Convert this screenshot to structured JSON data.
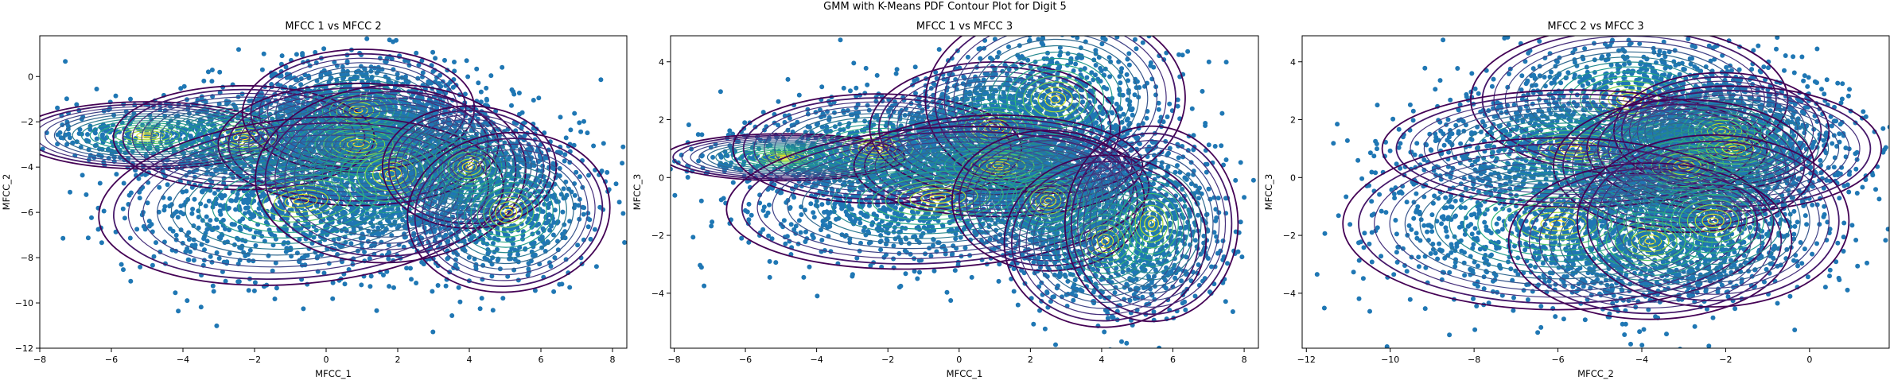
{
  "figure": {
    "suptitle": "GMM with K-Means PDF Contour Plot for Digit 5",
    "point_color": "#1f77b4",
    "contour_colormap": "viridis"
  },
  "chart_data": [
    {
      "type": "scatter",
      "title": "MFCC 1 vs MFCC 2",
      "xlabel": "MFCC_1",
      "ylabel": "MFCC_2",
      "xlim": [
        -8,
        8.4
      ],
      "ylim": [
        -12,
        1.8
      ],
      "xticks": [
        -8,
        -6,
        -4,
        -2,
        0,
        2,
        4,
        6,
        8
      ],
      "yticks": [
        0,
        -2,
        -4,
        -6,
        -8,
        -10,
        -12
      ],
      "components": [
        {
          "mean": [
            -5.0,
            -2.6
          ],
          "sd": [
            1.35,
            0.55
          ],
          "rho": 0.0,
          "n": 220
        },
        {
          "mean": [
            -2.3,
            -2.7
          ],
          "sd": [
            1.35,
            0.85
          ],
          "rho": 0.0,
          "n": 420
        },
        {
          "mean": [
            0.9,
            -1.5
          ],
          "sd": [
            1.2,
            1.0
          ],
          "rho": 0.05,
          "n": 900
        },
        {
          "mean": [
            0.9,
            -3.0
          ],
          "sd": [
            1.45,
            1.0
          ],
          "rho": 0.0,
          "n": 1000
        },
        {
          "mean": [
            -0.7,
            -5.5
          ],
          "sd": [
            2.1,
            1.35
          ],
          "rho": 0.15,
          "n": 1100
        },
        {
          "mean": [
            1.8,
            -4.3
          ],
          "sd": [
            1.4,
            1.45
          ],
          "rho": 0.1,
          "n": 600
        },
        {
          "mean": [
            4.0,
            -4.0
          ],
          "sd": [
            0.9,
            1.0
          ],
          "rho": 0.0,
          "n": 500
        },
        {
          "mean": [
            5.1,
            -6.0
          ],
          "sd": [
            1.05,
            1.3
          ],
          "rho": 0.2,
          "n": 550
        }
      ]
    },
    {
      "type": "scatter",
      "title": "MFCC 1 vs MFCC 3",
      "xlabel": "MFCC_1",
      "ylabel": "MFCC_3",
      "xlim": [
        -8.1,
        8.4
      ],
      "ylim": [
        -5.9,
        4.9
      ],
      "xticks": [
        -8,
        -6,
        -4,
        -2,
        0,
        2,
        4,
        6,
        8
      ],
      "yticks": [
        4,
        2,
        0,
        -2,
        -4
      ],
      "components": [
        {
          "mean": [
            -4.9,
            0.7
          ],
          "sd": [
            1.25,
            0.3
          ],
          "rho": 0.0,
          "n": 220
        },
        {
          "mean": [
            -2.3,
            1.0
          ],
          "sd": [
            1.5,
            0.7
          ],
          "rho": 0.0,
          "n": 500
        },
        {
          "mean": [
            1.0,
            1.7
          ],
          "sd": [
            1.3,
            0.85
          ],
          "rho": 0.0,
          "n": 900
        },
        {
          "mean": [
            2.7,
            2.7
          ],
          "sd": [
            1.35,
            1.2
          ],
          "rho": 0.05,
          "n": 600
        },
        {
          "mean": [
            1.1,
            0.4
          ],
          "sd": [
            1.5,
            0.65
          ],
          "rho": 0.0,
          "n": 1000
        },
        {
          "mean": [
            -0.6,
            -0.7
          ],
          "sd": [
            2.2,
            0.9
          ],
          "rho": 0.1,
          "n": 1100
        },
        {
          "mean": [
            2.5,
            -0.8
          ],
          "sd": [
            1.0,
            0.9
          ],
          "rho": 0.0,
          "n": 500
        },
        {
          "mean": [
            4.1,
            -2.2
          ],
          "sd": [
            1.05,
            1.1
          ],
          "rho": 0.1,
          "n": 600
        },
        {
          "mean": [
            5.4,
            -1.6
          ],
          "sd": [
            0.9,
            1.25
          ],
          "rho": 0.0,
          "n": 450
        }
      ]
    },
    {
      "type": "scatter",
      "title": "MFCC 2 vs MFCC 3",
      "xlabel": "MFCC_2",
      "ylabel": "MFCC_3",
      "xlim": [
        -12.1,
        1.9
      ],
      "ylim": [
        -5.9,
        4.9
      ],
      "xticks": [
        -12,
        -10,
        -8,
        -6,
        -4,
        -2,
        0
      ],
      "yticks": [
        4,
        2,
        0,
        -2,
        -4
      ],
      "components": [
        {
          "mean": [
            -4.3,
            2.7
          ],
          "sd": [
            1.4,
            0.95
          ],
          "rho": 0.0,
          "n": 700
        },
        {
          "mean": [
            -5.6,
            1.0
          ],
          "sd": [
            1.7,
            0.75
          ],
          "rho": 0.0,
          "n": 800
        },
        {
          "mean": [
            -2.1,
            1.6
          ],
          "sd": [
            0.95,
            0.75
          ],
          "rho": 0.0,
          "n": 500
        },
        {
          "mean": [
            -1.8,
            1.0
          ],
          "sd": [
            1.3,
            0.8
          ],
          "rho": 0.0,
          "n": 500
        },
        {
          "mean": [
            -3.0,
            0.4
          ],
          "sd": [
            1.15,
            0.85
          ],
          "rho": 0.0,
          "n": 1100
        },
        {
          "mean": [
            -6.0,
            -1.6
          ],
          "sd": [
            1.9,
            1.1
          ],
          "rho": 0.0,
          "n": 900
        },
        {
          "mean": [
            -3.8,
            -2.2
          ],
          "sd": [
            1.25,
            1.0
          ],
          "rho": 0.0,
          "n": 700
        },
        {
          "mean": [
            -2.3,
            -1.5
          ],
          "sd": [
            1.2,
            1.1
          ],
          "rho": 0.0,
          "n": 400
        }
      ]
    }
  ]
}
